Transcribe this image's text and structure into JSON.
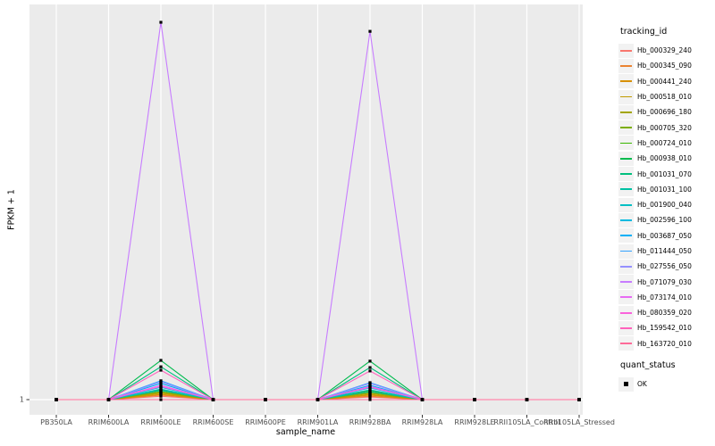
{
  "chart_data": {
    "type": "line",
    "title": "",
    "xlabel": "sample_name",
    "ylabel": "FPKM + 1",
    "x_categories": [
      "PB350LA",
      "RRIM600LA",
      "RRIM600LE",
      "RRIM600SE",
      "RRIM600PE",
      "RRIM901LA",
      "RRIM928BA",
      "RRIM928LA",
      "RRIM928LE",
      "RRII105LA_Control",
      "RRII105LA_Stressed"
    ],
    "y_tick_labels": [
      "1"
    ],
    "values_unit": "relative height above baseline FPKM+1=1, as fraction of y-axis span (only the '1' tick is labeled)",
    "legend_position": "right",
    "grid": true,
    "panel_background": "#EBEBEB",
    "gridline_color": "#FFFFFF",
    "axis_text_color": "#4D4D4D",
    "marker": {
      "shape": "square",
      "color": "#000000"
    },
    "legend": {
      "series_title": "tracking_id",
      "point_title": "quant_status",
      "point_items": [
        "OK"
      ]
    },
    "series": [
      {
        "name": "Hb_000329_240",
        "color": "#F8766D",
        "values": [
          0,
          0,
          0.009,
          0,
          0,
          0,
          0.007,
          0,
          0,
          0,
          0
        ]
      },
      {
        "name": "Hb_000345_090",
        "color": "#EA8331",
        "values": [
          0,
          0,
          0.012,
          0,
          0,
          0,
          0.009,
          0,
          0,
          0,
          0
        ]
      },
      {
        "name": "Hb_000441_240",
        "color": "#D89000",
        "values": [
          0,
          0,
          0.014,
          0,
          0,
          0,
          0.012,
          0,
          0,
          0,
          0
        ]
      },
      {
        "name": "Hb_000518_010",
        "color": "#C09B00",
        "values": [
          0,
          0,
          0.017,
          0,
          0,
          0,
          0.014,
          0,
          0,
          0,
          0
        ]
      },
      {
        "name": "Hb_000696_180",
        "color": "#A3A500",
        "values": [
          0,
          0,
          0.019,
          0,
          0,
          0,
          0.017,
          0,
          0,
          0,
          0
        ]
      },
      {
        "name": "Hb_000705_320",
        "color": "#7CAE00",
        "values": [
          0,
          0,
          0.021,
          0,
          0,
          0,
          0.019,
          0,
          0,
          0,
          0
        ]
      },
      {
        "name": "Hb_000724_010",
        "color": "#39B600",
        "values": [
          0,
          0,
          0.026,
          0,
          0,
          0,
          0.024,
          0,
          0,
          0,
          0
        ]
      },
      {
        "name": "Hb_000938_010",
        "color": "#00BB4E",
        "values": [
          0,
          0,
          0.104,
          0,
          0,
          0,
          0.102,
          0,
          0,
          0,
          0
        ]
      },
      {
        "name": "Hb_001031_070",
        "color": "#00BF7D",
        "values": [
          0,
          0,
          0.087,
          0,
          0,
          0,
          0.085,
          0,
          0,
          0,
          0
        ]
      },
      {
        "name": "Hb_001031_100",
        "color": "#00C1A3",
        "values": [
          0,
          0,
          0.024,
          0,
          0,
          0,
          0.021,
          0,
          0,
          0,
          0
        ]
      },
      {
        "name": "Hb_001900_040",
        "color": "#00BFC4",
        "values": [
          0,
          0,
          0.028,
          0,
          0,
          0,
          0.026,
          0,
          0,
          0,
          0
        ]
      },
      {
        "name": "Hb_002596_100",
        "color": "#00BAE0",
        "values": [
          0,
          0,
          0.033,
          0,
          0,
          0,
          0.031,
          0,
          0,
          0,
          0
        ]
      },
      {
        "name": "Hb_003687_050",
        "color": "#00B0F6",
        "values": [
          0,
          0,
          0.043,
          0,
          0,
          0,
          0.038,
          0,
          0,
          0,
          0
        ]
      },
      {
        "name": "Hb_011444_050",
        "color": "#35A2FF",
        "values": [
          0,
          0,
          0.05,
          0,
          0,
          0,
          0.045,
          0,
          0,
          0,
          0
        ]
      },
      {
        "name": "Hb_027556_050",
        "color": "#9590FF",
        "values": [
          0,
          0,
          0.047,
          0,
          0,
          0,
          0.043,
          0,
          0,
          0,
          0
        ]
      },
      {
        "name": "Hb_071079_030",
        "color": "#C77CFF",
        "values": [
          0,
          0,
          1.0,
          0,
          0,
          0,
          0.976,
          0,
          0,
          0,
          0
        ]
      },
      {
        "name": "Hb_073174_010",
        "color": "#E76BF3",
        "values": [
          0,
          0,
          0.038,
          0,
          0,
          0,
          0.035,
          0,
          0,
          0,
          0
        ]
      },
      {
        "name": "Hb_080359_020",
        "color": "#FA62DB",
        "values": [
          0,
          0,
          0.035,
          0,
          0,
          0,
          0.033,
          0,
          0,
          0,
          0
        ]
      },
      {
        "name": "Hb_159542_010",
        "color": "#FF62BC",
        "values": [
          0,
          0,
          0.078,
          0,
          0,
          0,
          0.076,
          0,
          0,
          0,
          0
        ]
      },
      {
        "name": "Hb_163720_010",
        "color": "#FF6A98",
        "values": [
          0,
          0,
          0,
          0,
          0,
          0,
          0,
          0,
          0,
          0,
          0
        ]
      }
    ]
  }
}
